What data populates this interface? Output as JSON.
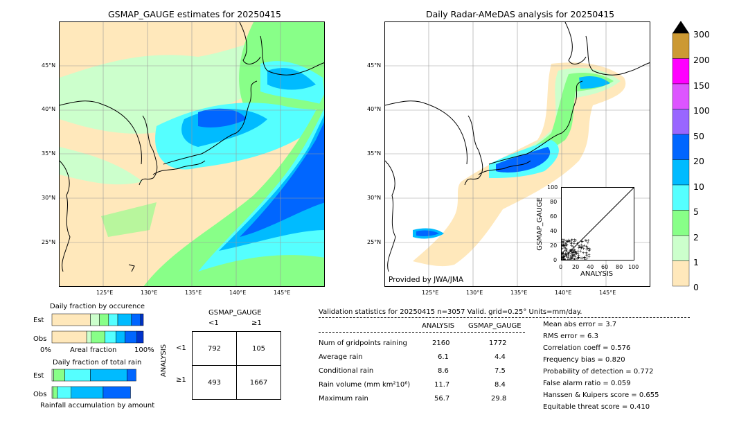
{
  "maps": {
    "left_title": "GSMAP_GAUGE estimates for 20250415",
    "right_title": "Daily Radar-AMeDAS analysis for 20250415",
    "lat_labels": [
      "45°N",
      "40°N",
      "35°N",
      "30°N",
      "25°N"
    ],
    "lon_labels": [
      "125°E",
      "130°E",
      "135°E",
      "140°E",
      "145°E"
    ],
    "credit": "Provided by JWA/JMA"
  },
  "colorbar": {
    "ticks": [
      "300",
      "200",
      "150",
      "100",
      "50",
      "20",
      "10",
      "5",
      "2",
      "1",
      "0"
    ],
    "colors": [
      "#cc9933",
      "#ff00ff",
      "#dd55ff",
      "#9966ff",
      "#0066ff",
      "#00bbff",
      "#55ffff",
      "#88ff88",
      "#ccffcc",
      "#ffe8bb"
    ]
  },
  "chart_data": [
    {
      "type": "heatmap",
      "title": "GSMAP_GAUGE estimates for 20250415",
      "xlabel": "",
      "ylabel": "",
      "x_ticks": [
        "125°E",
        "130°E",
        "135°E",
        "140°E",
        "145°E"
      ],
      "y_ticks": [
        "45°N",
        "40°N",
        "35°N",
        "30°N",
        "25°N"
      ],
      "color_levels": [
        0,
        1,
        2,
        5,
        10,
        20,
        50,
        100,
        150,
        200,
        300
      ]
    },
    {
      "type": "heatmap",
      "title": "Daily Radar-AMeDAS analysis for 20250415",
      "xlabel": "",
      "ylabel": "",
      "x_ticks": [
        "125°E",
        "130°E",
        "135°E",
        "140°E",
        "145°E"
      ],
      "y_ticks": [
        "45°N",
        "40°N",
        "35°N",
        "30°N",
        "25°N"
      ],
      "color_levels": [
        0,
        1,
        2,
        5,
        10,
        20,
        50,
        100,
        150,
        200,
        300
      ]
    },
    {
      "type": "scatter",
      "xlabel": "ANALYSIS",
      "ylabel": "GSMAP_GAUGE",
      "xlim": [
        0,
        100
      ],
      "ylim": [
        0,
        100
      ],
      "x_ticks": [
        "0",
        "20",
        "40",
        "60",
        "80",
        "100"
      ],
      "y_ticks": [
        "0",
        "20",
        "40",
        "60",
        "80",
        "100"
      ]
    },
    {
      "type": "bar",
      "title": "Daily fraction by occurence",
      "categories": [
        "Est",
        "Obs"
      ],
      "xlabel": "Areal fraction",
      "x_ticks": [
        "0%",
        "100%"
      ],
      "series": [
        {
          "values": [
            0.42,
            0.38
          ]
        },
        {
          "values": [
            0.1,
            0.05
          ]
        },
        {
          "values": [
            0.1,
            0.15
          ]
        },
        {
          "values": [
            0.1,
            0.12
          ]
        },
        {
          "values": [
            0.15,
            0.1
          ]
        },
        {
          "values": [
            0.1,
            0.13
          ]
        },
        {
          "values": [
            0.03,
            0.07
          ]
        }
      ]
    },
    {
      "type": "bar",
      "title": "Daily fraction of total rain",
      "categories": [
        "Est",
        "Obs"
      ],
      "xlabel": "Rainfall accumulation by amount",
      "series": [
        {
          "values": [
            0.02,
            0.01
          ]
        },
        {
          "values": [
            0.12,
            0.05
          ]
        },
        {
          "values": [
            0.28,
            0.15
          ]
        },
        {
          "values": [
            0.4,
            0.35
          ]
        },
        {
          "values": [
            0.1,
            0.3
          ]
        }
      ]
    },
    {
      "type": "table",
      "title": "GSMAP_GAUGE",
      "columns": [
        "<1",
        "≥1"
      ],
      "rows": [
        "<1",
        "≥1"
      ],
      "row_axis": "ANALYSIS",
      "cells": [
        [
          "792",
          "105"
        ],
        [
          "493",
          "1667"
        ]
      ]
    }
  ],
  "bars": {
    "occ_title": "Daily fraction by occurence",
    "rain_title": "Daily fraction of total rain",
    "est": "Est",
    "obs": "Obs",
    "x0": "0%",
    "x100": "100%",
    "occ_xlabel": "Areal fraction",
    "rain_xlabel": "Rainfall accumulation by amount"
  },
  "contingency": {
    "col_title": "GSMAP_GAUGE",
    "col_lt": "<1",
    "col_ge": "≥1",
    "row_title": "ANALYSIS",
    "row_lt": "<1",
    "row_ge": "≥1",
    "c11": "792",
    "c12": "105",
    "c21": "493",
    "c22": "1667"
  },
  "scatter": {
    "xlabel": "ANALYSIS",
    "ylabel": "GSMAP_GAUGE",
    "ticks": [
      "0",
      "20",
      "40",
      "60",
      "80",
      "100"
    ]
  },
  "stats": {
    "header": "Validation statistics for 20250415  n=3057 Valid. grid=0.25° Units=mm/day.",
    "col_analysis": "ANALYSIS",
    "col_gsmap": "GSMAP_GAUGE",
    "rows": [
      {
        "label": "Num of gridpoints raining",
        "a": "2160",
        "g": "1772"
      },
      {
        "label": "Average rain",
        "a": "6.1",
        "g": "4.4"
      },
      {
        "label": "Conditional rain",
        "a": "8.6",
        "g": "7.5"
      },
      {
        "label": "Rain volume (mm km²10⁶)",
        "a": "11.7",
        "g": "8.4"
      },
      {
        "label": "Maximum rain",
        "a": "56.7",
        "g": "29.8"
      }
    ],
    "scores": [
      "Mean abs error =    3.7",
      "RMS error =    6.3",
      "Correlation coeff =  0.576",
      "Frequency bias =  0.820",
      "Probability of detection =  0.772",
      "False alarm ratio =  0.059",
      "Hanssen & Kuipers score =  0.655",
      "Equitable threat score =  0.410"
    ]
  }
}
